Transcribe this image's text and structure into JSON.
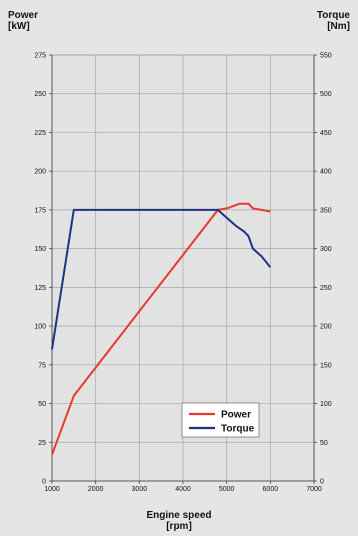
{
  "chart_data": {
    "type": "line",
    "y_left_label": [
      "Power",
      "[kW]"
    ],
    "y_right_label": [
      "Torque",
      "[Nm]"
    ],
    "xlabel": [
      "Engine speed",
      "[rpm]"
    ],
    "xlim": [
      1000,
      7000
    ],
    "x_ticks": [
      1000,
      2000,
      3000,
      4000,
      5000,
      6000,
      7000
    ],
    "ylim_left": [
      0,
      275
    ],
    "y_left_ticks": [
      0,
      25,
      50,
      75,
      100,
      125,
      150,
      175,
      200,
      225,
      250,
      275
    ],
    "ylim_right": [
      0,
      550
    ],
    "y_right_ticks": [
      0,
      50,
      100,
      150,
      200,
      250,
      300,
      350,
      400,
      450,
      500,
      550
    ],
    "grid": true,
    "legend_position": "bottom-right",
    "series": [
      {
        "name": "Power",
        "axis": "left",
        "color": "#e8392d",
        "x": [
          1000,
          1500,
          4800,
          5000,
          5200,
          5300,
          5500,
          5600,
          5800,
          6000
        ],
        "y": [
          17,
          55,
          175,
          176,
          178,
          179,
          179,
          176,
          175,
          174
        ]
      },
      {
        "name": "Torque",
        "axis": "right",
        "color": "#1f3282",
        "x": [
          1000,
          1500,
          1600,
          4800,
          5000,
          5200,
          5400,
          5500,
          5600,
          5800,
          6000
        ],
        "y": [
          170,
          350,
          350,
          350,
          340,
          330,
          322,
          316,
          300,
          290,
          276
        ]
      }
    ]
  }
}
